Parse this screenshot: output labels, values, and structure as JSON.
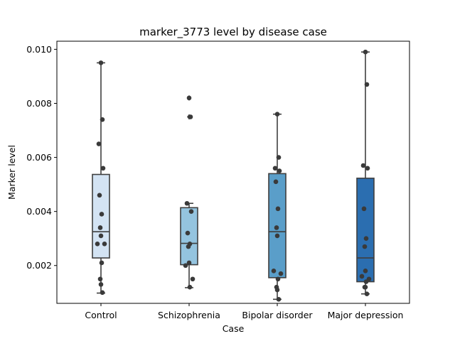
{
  "chart_data": {
    "type": "box",
    "title": "marker_3773 level by disease case",
    "xlabel": "Case",
    "ylabel": "Marker level",
    "ylim": [
      0.0006,
      0.0103
    ],
    "yticks": [
      "0.002",
      "0.004",
      "0.006",
      "0.008",
      "0.010"
    ],
    "ytick_values": [
      0.002,
      0.004,
      0.006,
      0.008,
      0.01
    ],
    "grid": false,
    "categories": [
      "Control",
      "Schizophrenia",
      "Bipolar disorder",
      "Major depression"
    ],
    "colors": [
      "#d3e3f3",
      "#94c4df",
      "#5a9ec9",
      "#2b6eb0"
    ],
    "boxes": [
      {
        "whisker_low": 0.00098,
        "q1": 0.00228,
        "median": 0.00325,
        "q3": 0.00537,
        "whisker_high": 0.0095,
        "outliers": []
      },
      {
        "whisker_low": 0.00118,
        "q1": 0.00203,
        "median": 0.00282,
        "q3": 0.00414,
        "whisker_high": 0.0043,
        "outliers": [
          0.0075,
          0.0082
        ]
      },
      {
        "whisker_low": 0.00075,
        "q1": 0.00155,
        "median": 0.00325,
        "q3": 0.0054,
        "whisker_high": 0.0076,
        "outliers": []
      },
      {
        "whisker_low": 0.00095,
        "q1": 0.0014,
        "median": 0.00228,
        "q3": 0.00523,
        "whisker_high": 0.0099,
        "outliers": []
      }
    ],
    "points": [
      [
        0.0095,
        0.0074,
        0.0065,
        0.0056,
        0.0046,
        0.0039,
        0.0034,
        0.0031,
        0.0028,
        0.0028,
        0.0021,
        0.0015,
        0.0013,
        0.001
      ],
      [
        0.0082,
        0.0075,
        0.0043,
        0.004,
        0.0032,
        0.0028,
        0.0027,
        0.0021,
        0.002,
        0.0015,
        0.0012
      ],
      [
        0.0076,
        0.006,
        0.0056,
        0.0055,
        0.0051,
        0.0041,
        0.0034,
        0.0031,
        0.0018,
        0.0017,
        0.0015,
        0.0012,
        0.0011,
        0.00075
      ],
      [
        0.0099,
        0.0087,
        0.0057,
        0.0056,
        0.0041,
        0.003,
        0.0027,
        0.0018,
        0.0016,
        0.0015,
        0.0014,
        0.0012,
        0.0012,
        0.00095
      ]
    ]
  }
}
